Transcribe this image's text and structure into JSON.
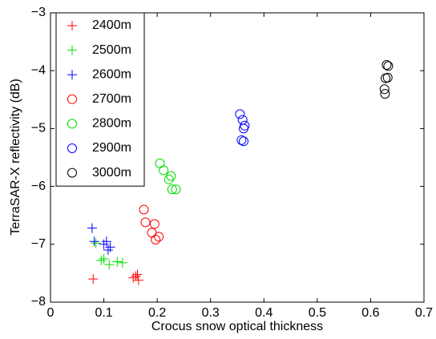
{
  "chart_data": {
    "type": "scatter",
    "xlabel": "Crocus snow optical thickness",
    "ylabel": "TerraSAR-X reflectivity (dB)",
    "xlim": [
      0,
      0.7
    ],
    "ylim": [
      -8,
      -3
    ],
    "xticks": [
      0,
      0.1,
      0.2,
      0.3,
      0.4,
      0.5,
      0.6,
      0.7
    ],
    "yticks": [
      {
        "value": -8,
        "label": "−8"
      },
      {
        "value": -7,
        "label": "−7"
      },
      {
        "value": -6,
        "label": "−6"
      },
      {
        "value": -5,
        "label": "−5"
      },
      {
        "value": -4,
        "label": "−4"
      },
      {
        "value": -3,
        "label": "−3"
      }
    ],
    "legend": "upper left",
    "series": [
      {
        "name": "2400m",
        "color": "#ff0000",
        "marker": "+",
        "x": [
          0.08,
          0.155,
          0.16,
          0.163,
          0.165
        ],
        "y": [
          -7.6,
          -7.58,
          -7.55,
          -7.52,
          -7.62
        ]
      },
      {
        "name": "2500m",
        "color": "#00dd00",
        "marker": "+",
        "x": [
          0.085,
          0.095,
          0.1,
          0.11,
          0.125,
          0.135
        ],
        "y": [
          -6.98,
          -7.28,
          -7.25,
          -7.35,
          -7.3,
          -7.32
        ]
      },
      {
        "name": "2600m",
        "color": "#0000ff",
        "marker": "+",
        "x": [
          0.078,
          0.082,
          0.1,
          0.105,
          0.108,
          0.112
        ],
        "y": [
          -6.72,
          -6.95,
          -7.0,
          -6.95,
          -7.1,
          -7.05
        ]
      },
      {
        "name": "2700m",
        "color": "#ff0000",
        "marker": "o",
        "x": [
          0.175,
          0.178,
          0.19,
          0.195,
          0.197,
          0.203
        ],
        "y": [
          -6.4,
          -6.62,
          -6.8,
          -6.65,
          -6.92,
          -6.87
        ]
      },
      {
        "name": "2800m",
        "color": "#00dd00",
        "marker": "o",
        "x": [
          0.205,
          0.212,
          0.222,
          0.226,
          0.228,
          0.235
        ],
        "y": [
          -5.6,
          -5.72,
          -5.88,
          -5.82,
          -6.05,
          -6.05
        ]
      },
      {
        "name": "2900m",
        "color": "#0000ff",
        "marker": "o",
        "x": [
          0.355,
          0.36,
          0.362,
          0.364,
          0.358,
          0.362
        ],
        "y": [
          -4.75,
          -4.85,
          -5.0,
          -4.95,
          -5.2,
          -5.22
        ]
      },
      {
        "name": "3000m",
        "color": "#000000",
        "marker": "o",
        "x": [
          0.63,
          0.632,
          0.628,
          0.626,
          0.627,
          0.633
        ],
        "y": [
          -3.9,
          -4.12,
          -4.13,
          -4.32,
          -4.4,
          -3.92
        ]
      }
    ]
  }
}
